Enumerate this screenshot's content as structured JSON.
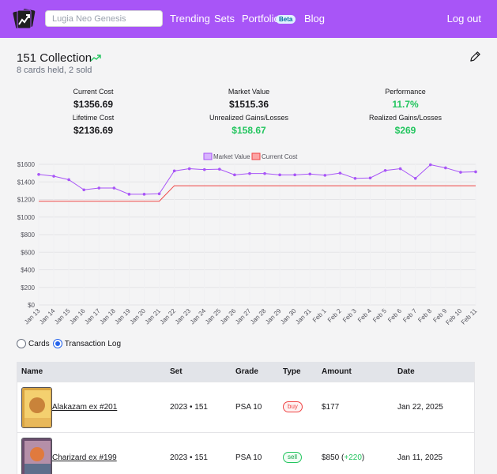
{
  "nav": {
    "search_placeholder": "Lugia Neo Genesis",
    "links": [
      "Trending",
      "Sets",
      "Portfolio",
      "Blog"
    ],
    "beta_badge": "Beta",
    "logout": "Log out",
    "brand_color": "#a855f7"
  },
  "header": {
    "title": "151 Collection",
    "subtitle": "8 cards held, 2 sold"
  },
  "stats": {
    "current_cost": {
      "label": "Current Cost",
      "value": "$1356.69"
    },
    "market_value": {
      "label": "Market Value",
      "value": "$1515.36"
    },
    "performance": {
      "label": "Performance",
      "value": "11.7%"
    },
    "lifetime_cost": {
      "label": "Lifetime Cost",
      "value": "$2136.69"
    },
    "unrealized": {
      "label": "Unrealized Gains/Losses",
      "value": "$158.67"
    },
    "realized": {
      "label": "Realized Gains/Losses",
      "value": "$269"
    }
  },
  "chart_data": {
    "type": "line",
    "categories": [
      "Jan 13",
      "Jan 14",
      "Jan 15",
      "Jan 16",
      "Jan 17",
      "Jan 18",
      "Jan 19",
      "Jan 20",
      "Jan 21",
      "Jan 22",
      "Jan 23",
      "Jan 24",
      "Jan 25",
      "Jan 26",
      "Jan 27",
      "Jan 28",
      "Jan 29",
      "Jan 30",
      "Jan 31",
      "Feb 1",
      "Feb 2",
      "Feb 3",
      "Feb 4",
      "Feb 5",
      "Feb 6",
      "Feb 7",
      "Feb 8",
      "Feb 9",
      "Feb 10",
      "Feb 11"
    ],
    "series": [
      {
        "name": "Market Value",
        "color": "#a855f7",
        "values": [
          1485,
          1465,
          1425,
          1310,
          1330,
          1330,
          1260,
          1260,
          1265,
          1525,
          1550,
          1540,
          1545,
          1480,
          1495,
          1495,
          1480,
          1480,
          1490,
          1475,
          1500,
          1440,
          1445,
          1530,
          1550,
          1440,
          1595,
          1560,
          1510,
          1515
        ]
      },
      {
        "name": "Current Cost",
        "color": "#ef4444",
        "values": [
          1180,
          1180,
          1180,
          1180,
          1180,
          1180,
          1180,
          1180,
          1180,
          1356.69,
          1356.69,
          1356.69,
          1356.69,
          1356.69,
          1356.69,
          1356.69,
          1356.69,
          1356.69,
          1356.69,
          1356.69,
          1356.69,
          1356.69,
          1356.69,
          1356.69,
          1356.69,
          1356.69,
          1356.69,
          1356.69,
          1356.69,
          1356.69
        ]
      }
    ],
    "y_ticks": [
      "$0",
      "$200",
      "$400",
      "$600",
      "$800",
      "$1000",
      "$1200",
      "$1400",
      "$1600"
    ],
    "ylim": [
      0,
      1600
    ],
    "grid": true,
    "legend": "top-center"
  },
  "view_toggle": {
    "options": [
      "Cards",
      "Transaction Log"
    ],
    "selected": "Transaction Log"
  },
  "table": {
    "headers": [
      "Name",
      "Set",
      "Grade",
      "Type",
      "Amount",
      "Date"
    ],
    "rows": [
      {
        "name": "Alakazam ex #201",
        "set": "2023 • 151",
        "grade": "PSA 10",
        "type": "buy",
        "amount": "$177",
        "gain": "",
        "date": "Jan 22, 2025"
      },
      {
        "name": "Charizard ex #199",
        "set": "2023 • 151",
        "grade": "PSA 10",
        "type": "sell",
        "amount": "$850",
        "gain": "+220",
        "date": "Jan 11, 2025"
      }
    ]
  }
}
